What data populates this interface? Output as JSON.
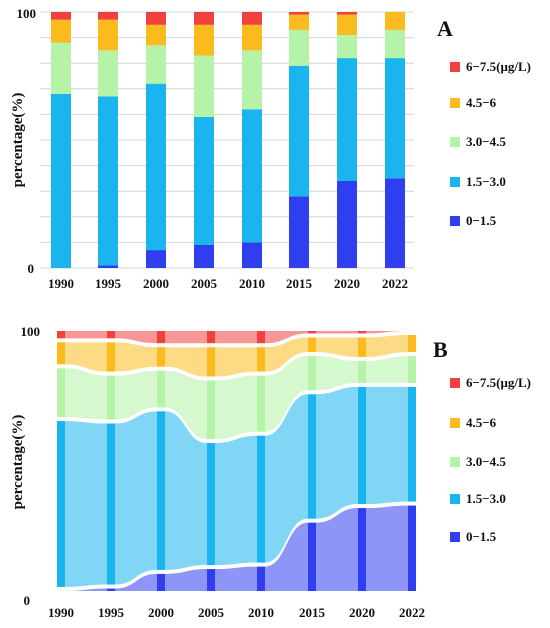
{
  "colors": {
    "0-1.5": "#2f3ff0",
    "1.5-3.0": "#1ab4ef",
    "3.0-4.5": "#b5f3a8",
    "4.5-6": "#fbbb1f",
    "6-7.5": "#f0413e"
  },
  "chart_data": [
    {
      "type": "bar",
      "stacked": true,
      "panel_label": "A",
      "ylabel": "percentage(%)",
      "ylim": [
        0,
        100
      ],
      "yticks": [
        "0",
        "100"
      ],
      "grid": true,
      "legend_position": "right",
      "categories": [
        "1990",
        "1995",
        "2000",
        "2005",
        "2010",
        "2015",
        "2020",
        "2022"
      ],
      "series": [
        {
          "name": "0−1.5",
          "key": "0-1.5",
          "values": [
            0,
            1,
            7,
            9,
            10,
            28,
            34,
            35
          ]
        },
        {
          "name": "1.5−3.0",
          "key": "1.5-3.0",
          "values": [
            68,
            66,
            65,
            50,
            52,
            51,
            48,
            47
          ]
        },
        {
          "name": "3.0−4.5",
          "key": "3.0-4.5",
          "values": [
            20,
            18,
            15,
            24,
            23,
            14,
            9,
            11
          ]
        },
        {
          "name": "4.5−6",
          "key": "4.5-6",
          "values": [
            9,
            12,
            8,
            12,
            10,
            6,
            8,
            7
          ]
        },
        {
          "name": "6−7.5(μg/L)",
          "key": "6-7.5",
          "values": [
            3,
            3,
            5,
            5,
            5,
            1,
            1,
            0
          ]
        }
      ]
    },
    {
      "type": "area",
      "subtype": "alluvial",
      "panel_label": "B",
      "ylabel": "percentage(%)",
      "ylim": [
        0,
        100
      ],
      "yticks": [
        "0",
        "100"
      ],
      "grid": false,
      "legend_position": "right",
      "categories": [
        "1990",
        "1995",
        "2000",
        "2005",
        "2010",
        "2015",
        "2020",
        "2022"
      ],
      "series": [
        {
          "name": "0−1.5",
          "key": "0-1.5",
          "values": [
            0,
            1,
            7,
            9,
            10,
            28,
            34,
            35
          ]
        },
        {
          "name": "1.5−3.0",
          "key": "1.5-3.0",
          "values": [
            68,
            66,
            65,
            50,
            52,
            51,
            48,
            47
          ]
        },
        {
          "name": "3.0−4.5",
          "key": "3.0-4.5",
          "values": [
            20,
            18,
            15,
            24,
            23,
            14,
            9,
            11
          ]
        },
        {
          "name": "4.5−6",
          "key": "4.5-6",
          "values": [
            9,
            12,
            8,
            12,
            10,
            6,
            8,
            7
          ]
        },
        {
          "name": "6−7.5(μg/L)",
          "key": "6-7.5",
          "values": [
            3,
            3,
            5,
            5,
            5,
            1,
            1,
            0
          ]
        }
      ]
    }
  ]
}
